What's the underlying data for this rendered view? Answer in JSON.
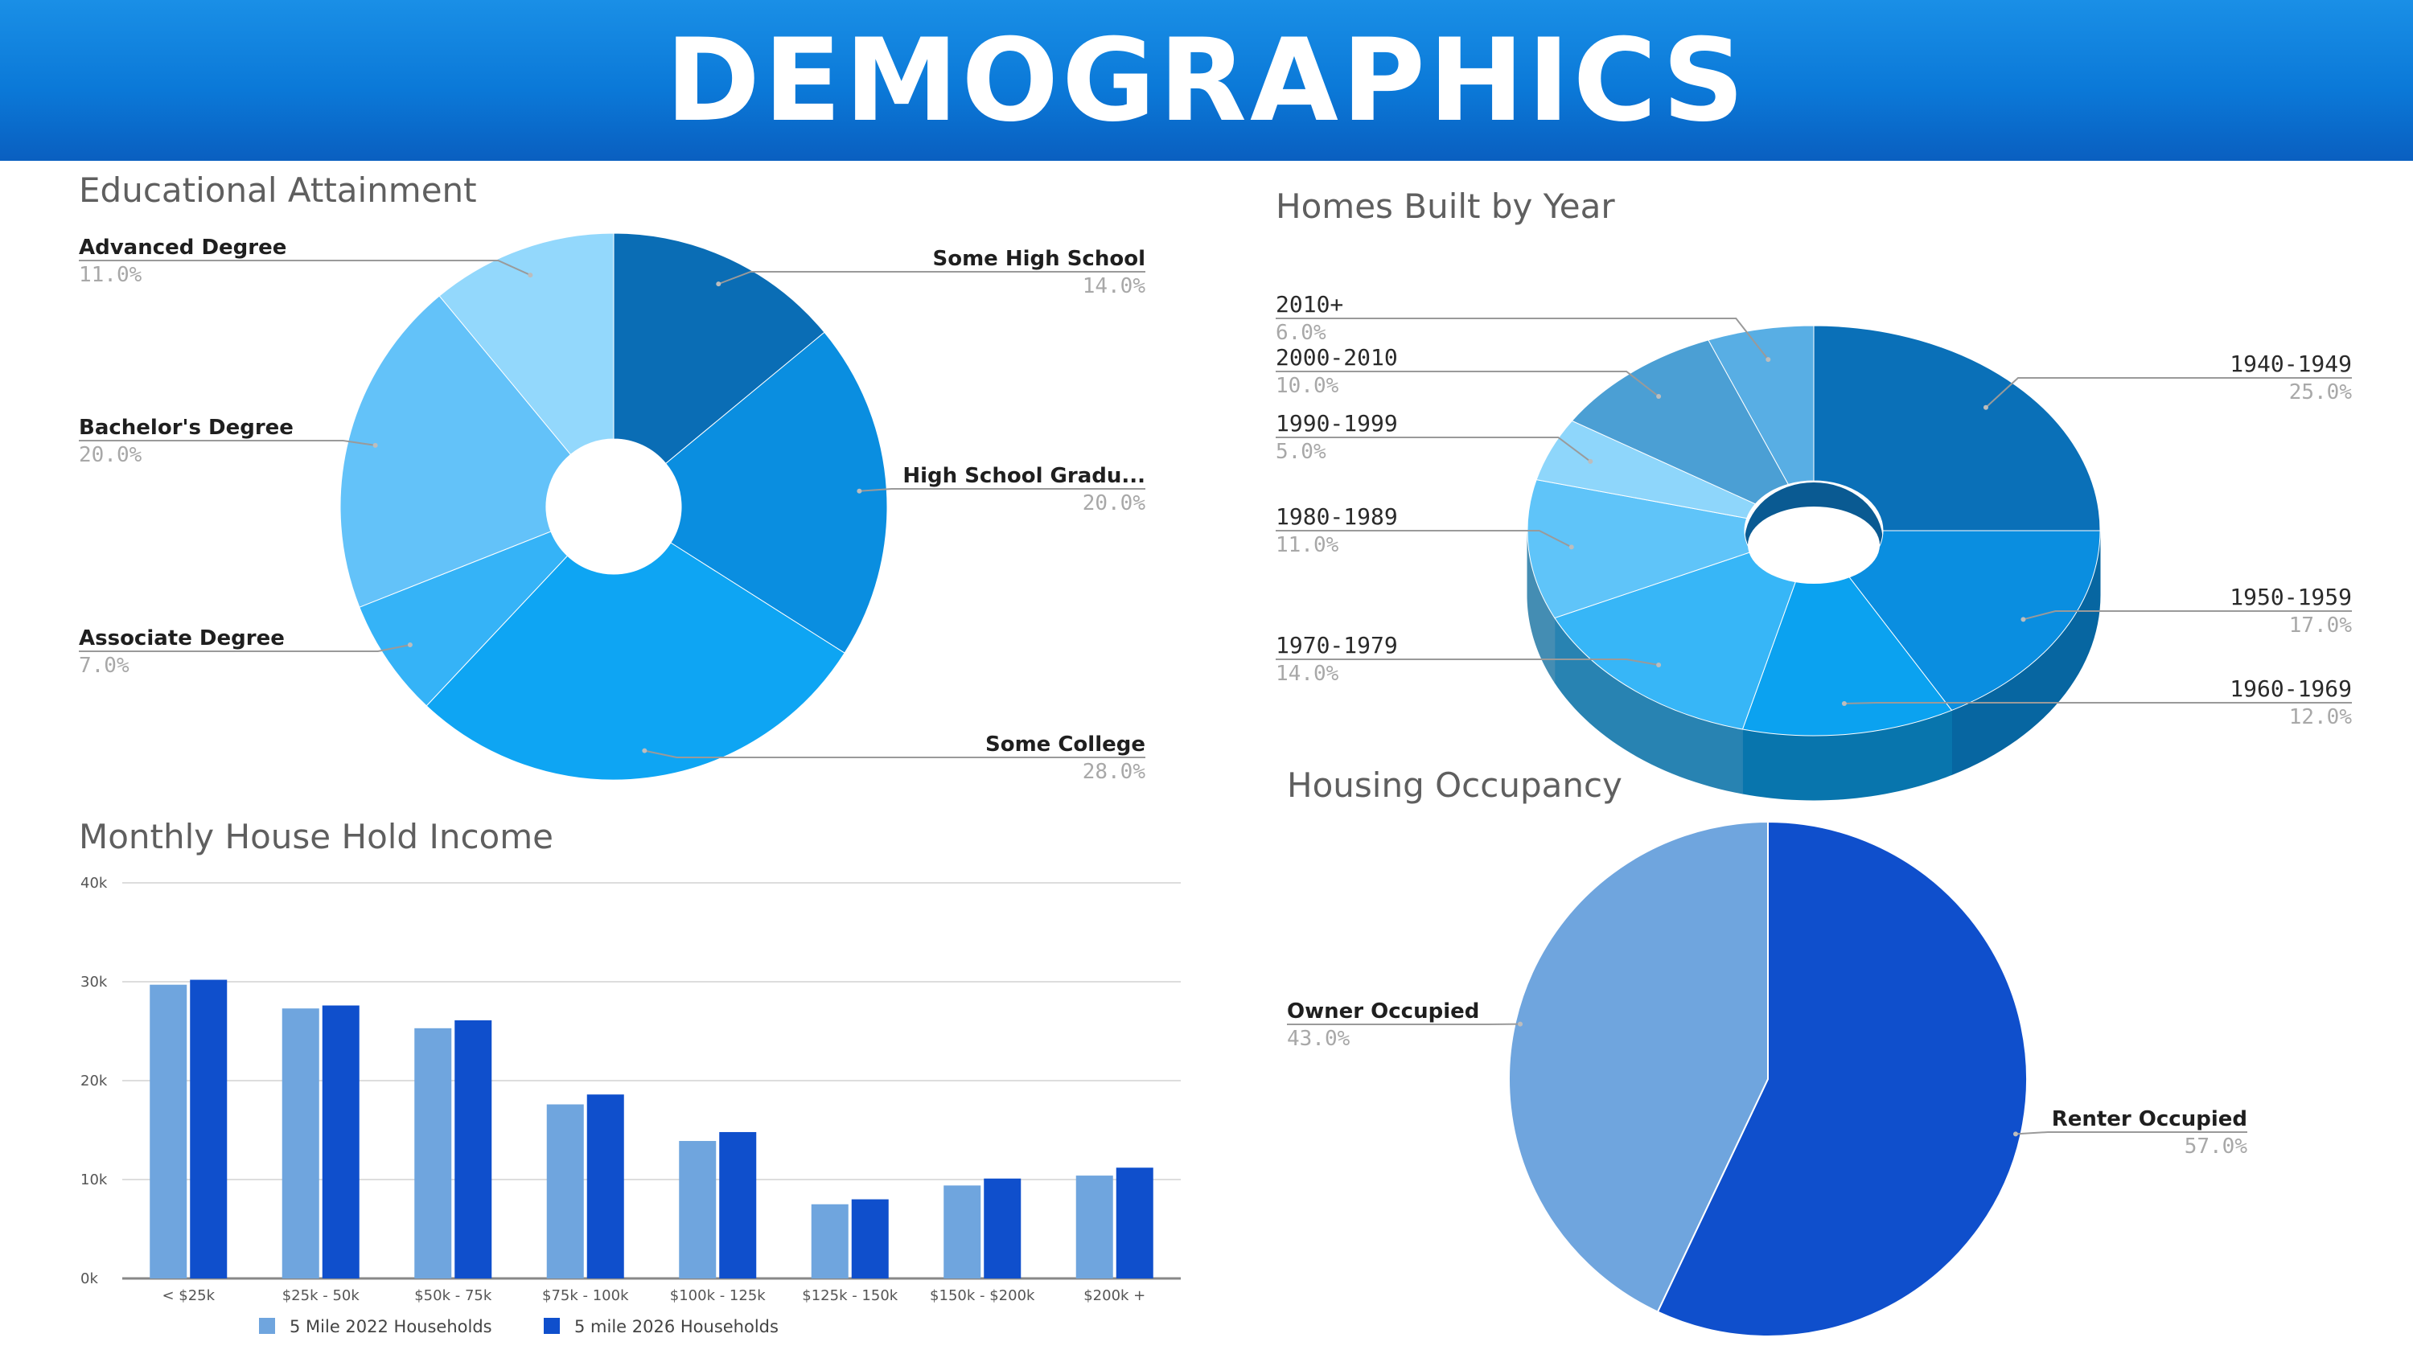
{
  "header": {
    "title": "DEMOGRAPHICS"
  },
  "colors": {
    "banner": "#0b79d8",
    "series_2022": "#6fa5de",
    "series_2026": "#0f4fcc"
  },
  "chart_data": [
    {
      "id": "education",
      "type": "pie",
      "variant": "donut",
      "title": "Educational Attainment",
      "slices": [
        {
          "label": "Some High School",
          "value": 14.0,
          "pct_text": "14.0%",
          "color": "#0a6db5"
        },
        {
          "label": "High School Gradu...",
          "value": 20.0,
          "pct_text": "20.0%",
          "color": "#0a8ee0"
        },
        {
          "label": "Some College",
          "value": 28.0,
          "pct_text": "28.0%",
          "color": "#0ea5f3"
        },
        {
          "label": "Associate Degree",
          "value": 7.0,
          "pct_text": "7.0%",
          "color": "#35b3f7"
        },
        {
          "label": "Bachelor's Degree",
          "value": 20.0,
          "pct_text": "20.0%",
          "color": "#63c2f9"
        },
        {
          "label": "Advanced Degree",
          "value": 11.0,
          "pct_text": "11.0%",
          "color": "#93d8fc"
        }
      ]
    },
    {
      "id": "homes_built",
      "type": "pie",
      "variant": "3d-donut",
      "title": "Homes Built by Year",
      "slices": [
        {
          "label": "1940-1949",
          "value": 25.0,
          "pct_text": "25.0%",
          "color": "#0a70b8"
        },
        {
          "label": "1950-1959",
          "value": 17.0,
          "pct_text": "17.0%",
          "color": "#0a8ee0"
        },
        {
          "label": "1960-1969",
          "value": 12.0,
          "pct_text": "12.0%",
          "color": "#0ba2f0"
        },
        {
          "label": "1970-1979",
          "value": 14.0,
          "pct_text": "14.0%",
          "color": "#37b6f7"
        },
        {
          "label": "1980-1989",
          "value": 11.0,
          "pct_text": "11.0%",
          "color": "#5fc4f9"
        },
        {
          "label": "1990-1999",
          "value": 5.0,
          "pct_text": "5.0%",
          "color": "#8ed6fb"
        },
        {
          "label": "2000-2010",
          "value": 10.0,
          "pct_text": "10.0%",
          "color": "#4b9fd4"
        },
        {
          "label": "2010+",
          "value": 6.0,
          "pct_text": "6.0%",
          "color": "#58aee4"
        }
      ]
    },
    {
      "id": "income",
      "type": "bar",
      "title": "Monthly House Hold Income",
      "categories": [
        "< $25k",
        "$25k - 50k",
        "$50k - 75k",
        "$75k - 100k",
        "$100k - 125k",
        "$125k - 150k",
        "$150k - $200k",
        "$200k +"
      ],
      "series": [
        {
          "name": "5 Mile 2022 Households",
          "color": "#6fa5de",
          "values": [
            29700,
            27300,
            25300,
            17600,
            13900,
            7500,
            9400,
            10400
          ]
        },
        {
          "name": "5 mile 2026 Households",
          "color": "#0f4fcc",
          "values": [
            30200,
            27600,
            26100,
            18600,
            14800,
            8000,
            10100,
            11200
          ]
        }
      ],
      "ylim": [
        0,
        40000
      ],
      "yticks": [
        0,
        10000,
        20000,
        30000,
        40000
      ],
      "ytick_labels": [
        "0k",
        "10k",
        "20k",
        "30k",
        "40k"
      ],
      "grid": true,
      "legend": "bottom"
    },
    {
      "id": "occupancy",
      "type": "pie",
      "title": "Housing Occupancy",
      "slices": [
        {
          "label": "Renter Occupied",
          "value": 57.0,
          "pct_text": "57.0%",
          "color": "#0f4fcc"
        },
        {
          "label": "Owner Occupied",
          "value": 43.0,
          "pct_text": "43.0%",
          "color": "#6fa5de"
        }
      ]
    }
  ]
}
